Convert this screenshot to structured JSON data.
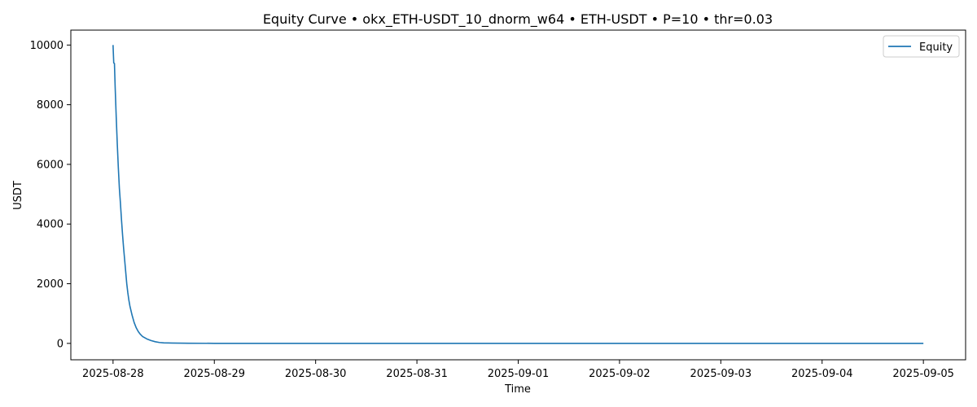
{
  "chart_data": {
    "type": "line",
    "title": "Equity Curve • okx_ETH-USDT_10_dnorm_w64 • ETH-USDT • P=10 • thr=0.03",
    "xlabel": "Time",
    "ylabel": "USDT",
    "x_ticks": [
      "2025-08-28",
      "2025-08-29",
      "2025-08-30",
      "2025-08-31",
      "2025-09-01",
      "2025-09-02",
      "2025-09-03",
      "2025-09-04",
      "2025-09-05"
    ],
    "y_ticks": [
      "0",
      "2000",
      "4000",
      "6000",
      "8000",
      "10000"
    ],
    "xlim": [
      "2025-08-27T14:00",
      "2025-09-05T10:00"
    ],
    "ylim": [
      -550,
      10500
    ],
    "grid": false,
    "legend": {
      "placement": "top-right"
    },
    "series": [
      {
        "name": "Equity",
        "color": "#1f77b4",
        "points": [
          [
            "2025-08-28T00:00",
            10000
          ],
          [
            "2025-08-28T00:10",
            9400
          ],
          [
            "2025-08-28T00:20",
            9380
          ],
          [
            "2025-08-28T00:30",
            8600
          ],
          [
            "2025-08-28T00:45",
            7600
          ],
          [
            "2025-08-28T01:00",
            6700
          ],
          [
            "2025-08-28T01:15",
            5900
          ],
          [
            "2025-08-28T01:30",
            5200
          ],
          [
            "2025-08-28T01:45",
            4700
          ],
          [
            "2025-08-28T02:00",
            4150
          ],
          [
            "2025-08-28T02:15",
            3650
          ],
          [
            "2025-08-28T02:30",
            3200
          ],
          [
            "2025-08-28T02:45",
            2800
          ],
          [
            "2025-08-28T03:00",
            2400
          ],
          [
            "2025-08-28T03:15",
            2000
          ],
          [
            "2025-08-28T03:30",
            1700
          ],
          [
            "2025-08-28T03:45",
            1450
          ],
          [
            "2025-08-28T04:00",
            1250
          ],
          [
            "2025-08-28T04:30",
            950
          ],
          [
            "2025-08-28T05:00",
            700
          ],
          [
            "2025-08-28T05:30",
            520
          ],
          [
            "2025-08-28T06:00",
            390
          ],
          [
            "2025-08-28T06:30",
            300
          ],
          [
            "2025-08-28T07:00",
            230
          ],
          [
            "2025-08-28T08:00",
            150
          ],
          [
            "2025-08-28T09:00",
            95
          ],
          [
            "2025-08-28T10:00",
            55
          ],
          [
            "2025-08-28T11:00",
            30
          ],
          [
            "2025-08-28T12:00",
            18
          ],
          [
            "2025-08-28T14:00",
            10
          ],
          [
            "2025-08-28T18:00",
            5
          ],
          [
            "2025-08-29T00:00",
            2
          ],
          [
            "2025-08-30T00:00",
            1
          ],
          [
            "2025-09-01T00:00",
            0.5
          ],
          [
            "2025-09-03T00:00",
            0.3
          ],
          [
            "2025-09-05T00:00",
            0.2
          ]
        ]
      }
    ]
  }
}
